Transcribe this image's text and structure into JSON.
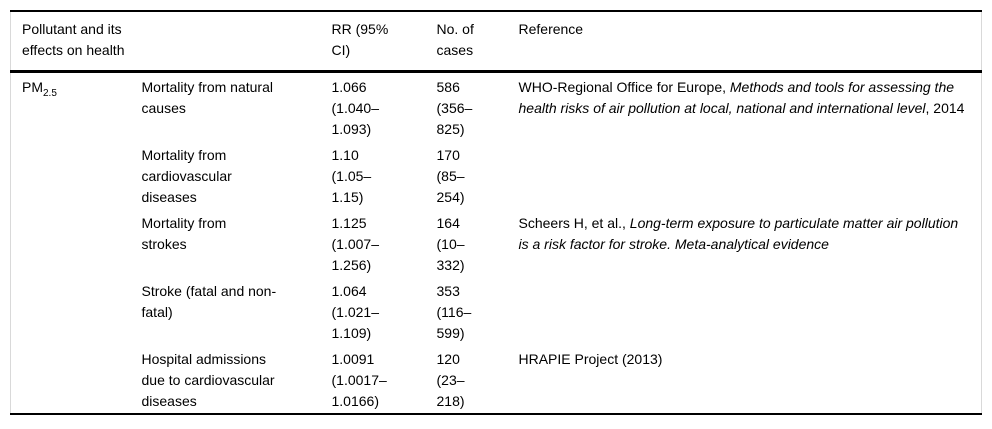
{
  "table": {
    "headers": [
      {
        "label": "Pollutant and its effects on health"
      },
      {
        "label": ""
      },
      {
        "label": "RR (95%\nCI)"
      },
      {
        "label": "No. of\ncases"
      },
      {
        "label": "Reference"
      }
    ],
    "pollutant": {
      "base": "PM",
      "subscript": "2.5"
    },
    "rows": [
      {
        "effect": "Mortality from natural\ncauses",
        "rr": "1.066\n(1.040–\n1.093)",
        "cases": "586\n(356–\n825)",
        "ref_prefix": "WHO-Regional Office for Europe, ",
        "ref_italic": "Methods and tools for assessing the health risks of air pollution at local, national and international level",
        "ref_suffix": ", 2014"
      },
      {
        "effect": "Mortality from\ncardiovascular\ndiseases",
        "rr": "1.10\n(1.05–\n1.15)",
        "cases": "170\n(85–\n254)",
        "ref_prefix": "",
        "ref_italic": "",
        "ref_suffix": ""
      },
      {
        "effect": "Mortality from\nstrokes",
        "rr": "1.125\n(1.007–\n1.256)",
        "cases": "164\n(10–\n332)",
        "ref_prefix": "Scheers H, et al., ",
        "ref_italic": "Long-term exposure to particulate matter air pollution is a risk factor for stroke. Meta-analytical evidence",
        "ref_suffix": ""
      },
      {
        "effect": "Stroke (fatal and non-\nfatal)",
        "rr": "1.064\n(1.021–\n1.109)",
        "cases": "353\n(116–\n599)",
        "ref_prefix": "",
        "ref_italic": "",
        "ref_suffix": ""
      },
      {
        "effect": "Hospital admissions\ndue to cardiovascular\ndiseases",
        "rr": "1.0091\n(1.0017–\n1.0166)",
        "cases": "120\n(23–\n218)",
        "ref_prefix": "HRAPIE Project (2013)",
        "ref_italic": "",
        "ref_suffix": ""
      }
    ]
  }
}
